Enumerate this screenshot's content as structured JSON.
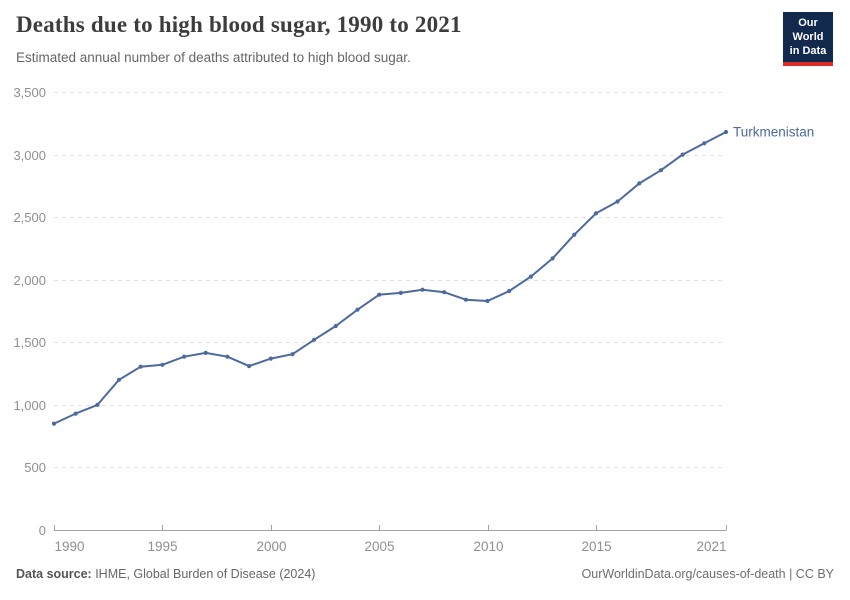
{
  "header": {
    "title": "Deaths due to high blood sugar, 1990 to 2021",
    "subtitle": "Estimated annual number of deaths attributed to high blood sugar.",
    "logo": {
      "line1": "Our World",
      "line2": "in Data"
    }
  },
  "chart_data": {
    "type": "line",
    "title": "Deaths due to high blood sugar, 1990 to 2021",
    "x": [
      1990,
      1991,
      1992,
      1993,
      1994,
      1995,
      1996,
      1997,
      1998,
      1999,
      2000,
      2001,
      2002,
      2003,
      2004,
      2005,
      2006,
      2007,
      2008,
      2009,
      2010,
      2011,
      2012,
      2013,
      2014,
      2015,
      2016,
      2017,
      2018,
      2019,
      2020,
      2021
    ],
    "series": [
      {
        "name": "Turkmenistan",
        "color": "#4c6a9e",
        "values": [
          850,
          930,
          1000,
          1200,
          1305,
          1320,
          1385,
          1415,
          1385,
          1310,
          1370,
          1405,
          1520,
          1630,
          1760,
          1880,
          1895,
          1920,
          1900,
          1840,
          1830,
          1910,
          2025,
          2170,
          2360,
          2530,
          2625,
          2770,
          2875,
          3000,
          3090,
          3180
        ]
      }
    ],
    "xlabel": "",
    "ylabel": "",
    "ylim": [
      0,
      3500
    ],
    "xlim": [
      1990,
      2021
    ],
    "y_ticks": [
      0,
      500,
      1000,
      1500,
      2000,
      2500,
      3000,
      3500
    ],
    "x_ticks": [
      1990,
      1995,
      2000,
      2005,
      2010,
      2015,
      2021
    ],
    "grid": "horizontal-dashed",
    "legend": "line-end-label"
  },
  "footer": {
    "source_label": "Data source:",
    "source_text": " IHME, Global Burden of Disease (2024)",
    "credit": "OurWorldinData.org/causes-of-death | CC BY"
  },
  "colors": {
    "series": "#4c6a9e",
    "gridline": "#e3e3e3",
    "axis_line": "#a3a3a3",
    "tick_label": "#8f8f8f",
    "title_text": "#3d3d3d",
    "logo_bg": "#12294e",
    "logo_red": "#dc2c27"
  }
}
